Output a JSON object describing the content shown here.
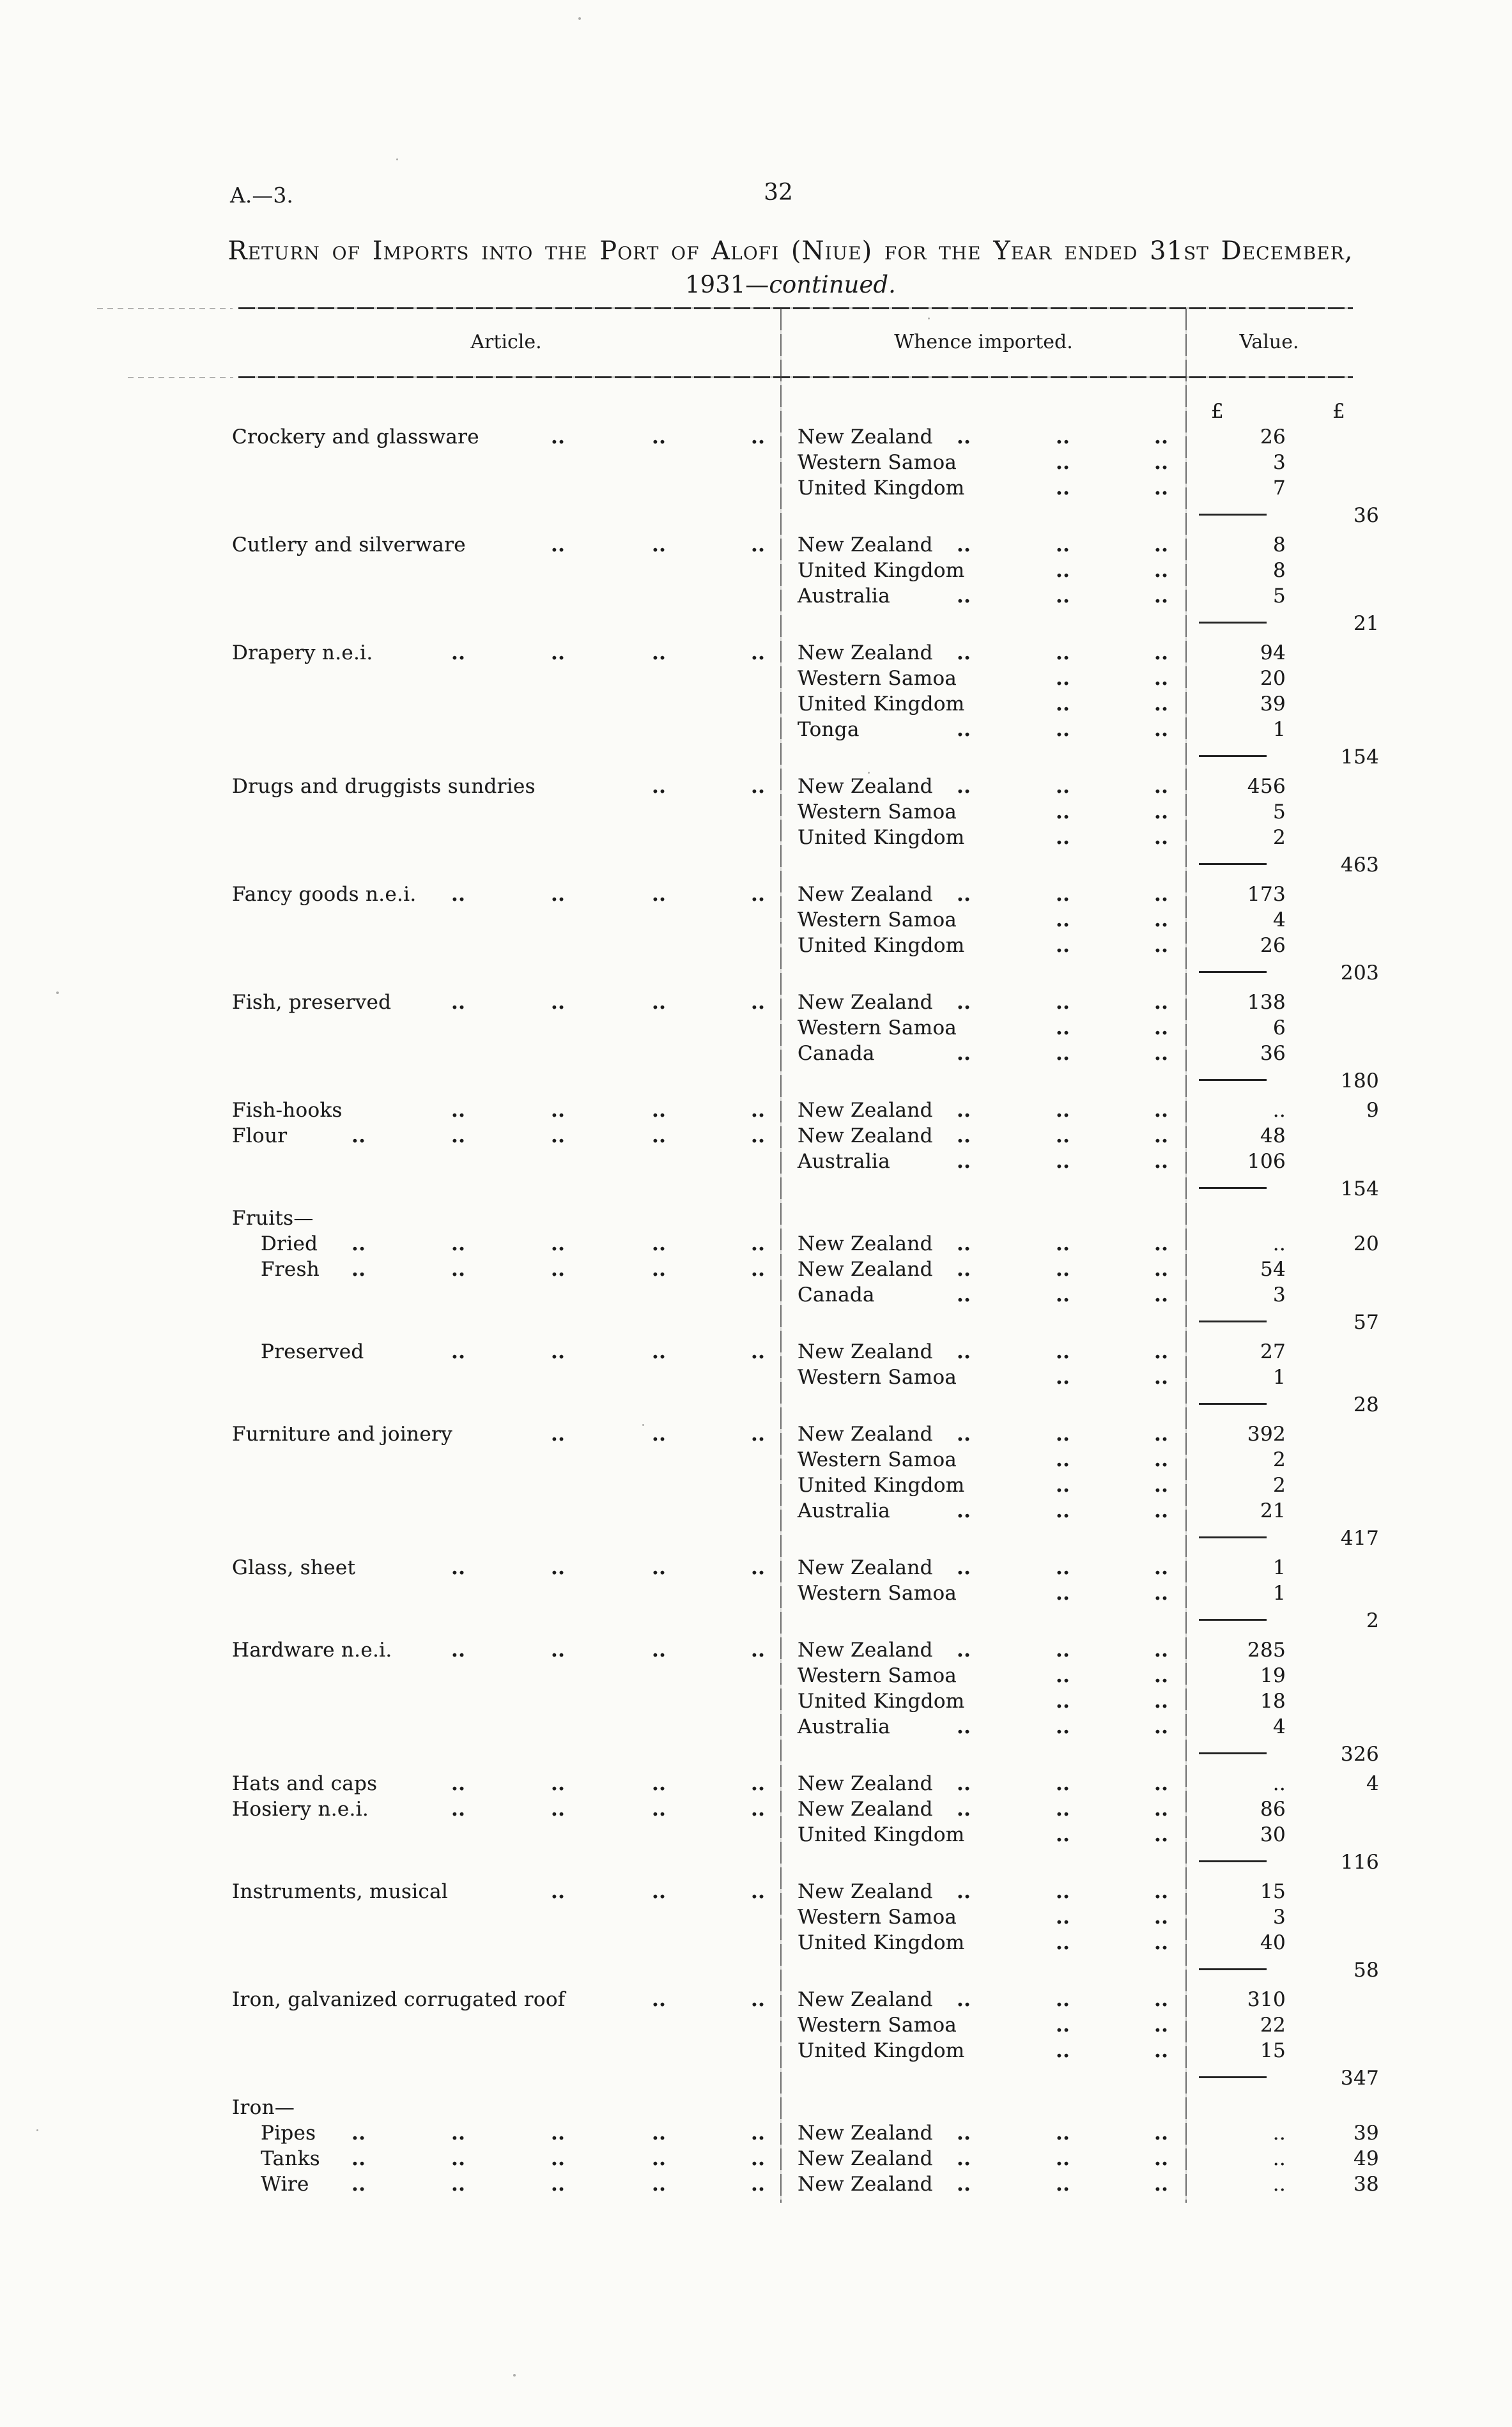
{
  "page": {
    "doc_ref": "A.—3.",
    "page_number": "32",
    "title_line1": "Return of Imports into the Port of Alofi (Niue) for the Year ended 31st December,",
    "title_line2_prefix": "1931—",
    "title_line2_continued": "continued."
  },
  "table": {
    "headers": {
      "article": "Article.",
      "whence": "Whence imported.",
      "value": "Value."
    },
    "currency_symbol": "£",
    "leader": "..",
    "groups": [
      {
        "article": "Crockery and glassware",
        "article_dots": 3,
        "imports": [
          {
            "country": "New Zealand",
            "dots": 3,
            "value": "26"
          },
          {
            "country": "Western Samoa",
            "dots": 2,
            "value": "3"
          },
          {
            "country": "United Kingdom",
            "dots": 2,
            "value": "7"
          }
        ],
        "total": "36"
      },
      {
        "article": "Cutlery and silverware",
        "article_dots": 3,
        "imports": [
          {
            "country": "New Zealand",
            "dots": 3,
            "value": "8"
          },
          {
            "country": "United Kingdom",
            "dots": 2,
            "value": "8"
          },
          {
            "country": "Australia",
            "dots": 3,
            "value": "5"
          }
        ],
        "total": "21"
      },
      {
        "article": "Drapery n.e.i.",
        "article_dots": 4,
        "imports": [
          {
            "country": "New Zealand",
            "dots": 3,
            "value": "94"
          },
          {
            "country": "Western Samoa",
            "dots": 2,
            "value": "20"
          },
          {
            "country": "United Kingdom",
            "dots": 2,
            "value": "39"
          },
          {
            "country": "Tonga",
            "dots": 3,
            "value": "1"
          }
        ],
        "total": "154"
      },
      {
        "article": "Drugs and druggists sundries",
        "article_dots": 2,
        "imports": [
          {
            "country": "New Zealand",
            "dots": 3,
            "value": "456"
          },
          {
            "country": "Western Samoa",
            "dots": 2,
            "value": "5"
          },
          {
            "country": "United Kingdom",
            "dots": 2,
            "value": "2"
          }
        ],
        "total": "463"
      },
      {
        "article": "Fancy goods n.e.i.",
        "article_dots": 4,
        "imports": [
          {
            "country": "New Zealand",
            "dots": 3,
            "value": "173"
          },
          {
            "country": "Western Samoa",
            "dots": 2,
            "value": "4"
          },
          {
            "country": "United Kingdom",
            "dots": 2,
            "value": "26"
          }
        ],
        "total": "203"
      },
      {
        "article": "Fish, preserved",
        "article_dots": 4,
        "imports": [
          {
            "country": "New Zealand",
            "dots": 3,
            "value": "138"
          },
          {
            "country": "Western Samoa",
            "dots": 2,
            "value": "6"
          },
          {
            "country": "Canada",
            "dots": 3,
            "value": "36"
          }
        ],
        "total": "180"
      },
      {
        "article": "Fish-hooks",
        "article_dots": 4,
        "inline_total": true,
        "imports": [
          {
            "country": "New Zealand",
            "dots": 3,
            "value": ".."
          }
        ],
        "total": "9"
      },
      {
        "article": "Flour",
        "article_dots": 5,
        "imports": [
          {
            "country": "New Zealand",
            "dots": 3,
            "value": "48"
          },
          {
            "country": "Australia",
            "dots": 3,
            "value": "106"
          }
        ],
        "total": "154"
      },
      {
        "section": "Fruits—"
      },
      {
        "article": "Dried",
        "article_dots": 5,
        "indent": true,
        "inline_total": true,
        "imports": [
          {
            "country": "New Zealand",
            "dots": 3,
            "value": ".."
          }
        ],
        "total": "20"
      },
      {
        "article": "Fresh",
        "article_dots": 5,
        "indent": true,
        "imports": [
          {
            "country": "New Zealand",
            "dots": 3,
            "value": "54"
          },
          {
            "country": "Canada",
            "dots": 3,
            "value": "3"
          }
        ],
        "total": "57"
      },
      {
        "article": "Preserved",
        "article_dots": 4,
        "indent": true,
        "imports": [
          {
            "country": "New Zealand",
            "dots": 3,
            "value": "27"
          },
          {
            "country": "Western Samoa",
            "dots": 2,
            "value": "1"
          }
        ],
        "total": "28"
      },
      {
        "article": "Furniture and joinery",
        "article_dots": 3,
        "imports": [
          {
            "country": "New Zealand",
            "dots": 3,
            "value": "392"
          },
          {
            "country": "Western Samoa",
            "dots": 2,
            "value": "2"
          },
          {
            "country": "United Kingdom",
            "dots": 2,
            "value": "2"
          },
          {
            "country": "Australia",
            "dots": 3,
            "value": "21"
          }
        ],
        "total": "417"
      },
      {
        "article": "Glass, sheet",
        "article_dots": 4,
        "imports": [
          {
            "country": "New Zealand",
            "dots": 3,
            "value": "1"
          },
          {
            "country": "Western Samoa",
            "dots": 2,
            "value": "1"
          }
        ],
        "total": "2"
      },
      {
        "article": "Hardware n.e.i.",
        "article_dots": 4,
        "imports": [
          {
            "country": "New Zealand",
            "dots": 3,
            "value": "285"
          },
          {
            "country": "Western Samoa",
            "dots": 2,
            "value": "19"
          },
          {
            "country": "United Kingdom",
            "dots": 2,
            "value": "18"
          },
          {
            "country": "Australia",
            "dots": 3,
            "value": "4"
          }
        ],
        "total": "326"
      },
      {
        "article": "Hats and caps",
        "article_dots": 4,
        "inline_total": true,
        "imports": [
          {
            "country": "New Zealand",
            "dots": 3,
            "value": ".."
          }
        ],
        "total": "4"
      },
      {
        "article": "Hosiery n.e.i.",
        "article_dots": 4,
        "imports": [
          {
            "country": "New Zealand",
            "dots": 3,
            "value": "86"
          },
          {
            "country": "United Kingdom",
            "dots": 2,
            "value": "30"
          }
        ],
        "total": "116"
      },
      {
        "article": "Instruments, musical",
        "article_dots": 3,
        "imports": [
          {
            "country": "New Zealand",
            "dots": 3,
            "value": "15"
          },
          {
            "country": "Western Samoa",
            "dots": 2,
            "value": "3"
          },
          {
            "country": "United Kingdom",
            "dots": 2,
            "value": "40"
          }
        ],
        "total": "58"
      },
      {
        "article": "Iron, galvanized corrugated roof",
        "article_dots": 2,
        "imports": [
          {
            "country": "New Zealand",
            "dots": 3,
            "value": "310"
          },
          {
            "country": "Western Samoa",
            "dots": 2,
            "value": "22"
          },
          {
            "country": "United Kingdom",
            "dots": 2,
            "value": "15"
          }
        ],
        "total": "347"
      },
      {
        "section": "Iron—"
      },
      {
        "article": "Pipes",
        "article_dots": 5,
        "indent": true,
        "inline_total": true,
        "imports": [
          {
            "country": "New Zealand",
            "dots": 3,
            "value": ".."
          }
        ],
        "total": "39"
      },
      {
        "article": "Tanks",
        "article_dots": 5,
        "indent": true,
        "inline_total": true,
        "imports": [
          {
            "country": "New Zealand",
            "dots": 3,
            "value": ".."
          }
        ],
        "total": "49"
      },
      {
        "article": "Wire",
        "article_dots": 5,
        "indent": true,
        "inline_total": true,
        "imports": [
          {
            "country": "New Zealand",
            "dots": 3,
            "value": ".."
          }
        ],
        "total": "38"
      }
    ]
  }
}
